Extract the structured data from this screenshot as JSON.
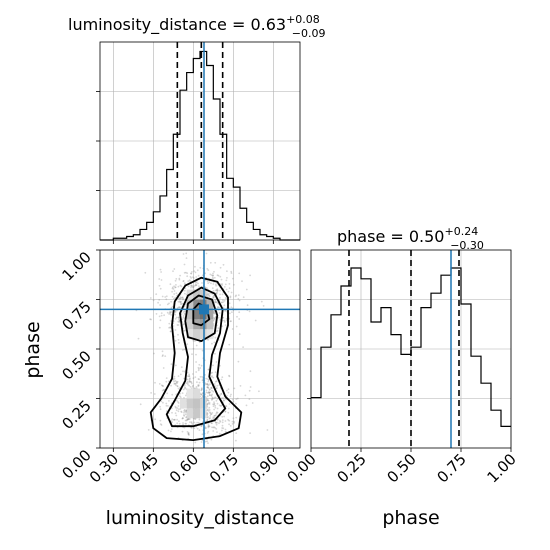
{
  "chart_data": {
    "type": "corner",
    "parameters": [
      "luminosity_distance",
      "phase"
    ],
    "truths": {
      "luminosity_distance": 0.64,
      "phase": 0.7
    },
    "colors": {
      "truth": "#1f77b4",
      "hist": "#000000",
      "grid": "#b0b0b0",
      "scatter": "#7f7f7f"
    },
    "grid": true,
    "panels": {
      "luminosity_distance_hist": {
        "title": "luminosity_distance = 0.63",
        "title_sup": "+0.08",
        "title_sub": "−0.09",
        "xlim": [
          0.25,
          1.0
        ],
        "bins": [
          0.25,
          0.275,
          0.3,
          0.325,
          0.35,
          0.375,
          0.4,
          0.425,
          0.45,
          0.475,
          0.5,
          0.525,
          0.55,
          0.575,
          0.6,
          0.625,
          0.65,
          0.675,
          0.7,
          0.725,
          0.75,
          0.775,
          0.8,
          0.825,
          0.85,
          0.875,
          0.9,
          0.925,
          0.95,
          0.975,
          1.0
        ],
        "counts": [
          0,
          0,
          1,
          1,
          2,
          3,
          6,
          10,
          16,
          25,
          40,
          60,
          85,
          95,
          103,
          107,
          99,
          80,
          60,
          35,
          30,
          18,
          10,
          6,
          3,
          2,
          1,
          0,
          0,
          0
        ],
        "quantile_lines": [
          0.54,
          0.63,
          0.71
        ],
        "truth": 0.64
      },
      "phase_hist": {
        "title": "phase = 0.50",
        "title_sup": "+0.24",
        "title_sub": "−0.30",
        "xlim": [
          0.0,
          1.0
        ],
        "bins": [
          0.0,
          0.05,
          0.1,
          0.15,
          0.2,
          0.25,
          0.3,
          0.35,
          0.4,
          0.45,
          0.5,
          0.55,
          0.6,
          0.65,
          0.7,
          0.75,
          0.8,
          0.85,
          0.9,
          0.95,
          1.0
        ],
        "counts": [
          28,
          56,
          74,
          90,
          100,
          94,
          70,
          78,
          63,
          52,
          56,
          78,
          86,
          96,
          100,
          80,
          51,
          36,
          21,
          12
        ],
        "quantile_lines": [
          0.19,
          0.5,
          0.74
        ],
        "truth": 0.7,
        "xticks": [
          "0.00",
          "0.25",
          "0.50",
          "0.75",
          "1.00"
        ],
        "xlabel": "phase"
      },
      "joint": {
        "xlim": [
          0.25,
          1.0
        ],
        "ylim": [
          0.0,
          1.0
        ],
        "xticks": [
          "0.30",
          "0.45",
          "0.60",
          "0.75",
          "0.90"
        ],
        "yticks": [
          "0.00",
          "0.25",
          "0.50",
          "0.75",
          "1.00"
        ],
        "xlabel": "luminosity_distance",
        "ylabel": "phase",
        "contour_levels": 4,
        "density_peak": [
          0.63,
          0.7
        ],
        "truth": [
          0.64,
          0.7
        ]
      }
    }
  }
}
